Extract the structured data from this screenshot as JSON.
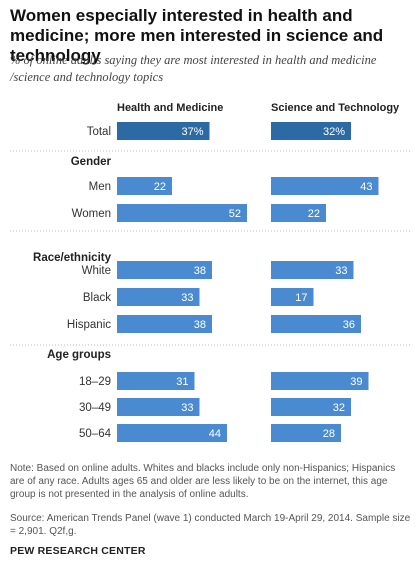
{
  "header": {
    "title": "Women especially interested in health and medicine; more men interested in science and technology",
    "subtitle": "% of online adults saying they are most interested in health and medicine /science and technology  topics"
  },
  "footer": {
    "note": "Note: Based on online adults. Whites and blacks include only non-Hispanics; Hispanics are of any race. Adults ages 65 and older are less likely to be on the internet, this age group is not presented in the analysis of online adults.",
    "source": "Source: American Trends Panel (wave 1) conducted March 19-April 29, 2014. Sample size = 2,901. Q2f,g.",
    "brand": "PEW RESEARCH CENTER"
  },
  "chart_data": {
    "type": "bar",
    "orientation": "horizontal",
    "value_format": "percent shown on Total row only",
    "series": [
      {
        "name": "Health and Medicine",
        "values": [
          37,
          22,
          52,
          38,
          33,
          38,
          31,
          33,
          44
        ]
      },
      {
        "name": "Science and Technology",
        "values": [
          32,
          43,
          22,
          33,
          17,
          36,
          39,
          32,
          28
        ]
      }
    ],
    "categories": [
      "Total",
      "Men",
      "Women",
      "White",
      "Black",
      "Hispanic",
      "18-29",
      "30-49",
      "50-64"
    ],
    "groups": [
      {
        "label": "",
        "categories": [
          "Total"
        ]
      },
      {
        "label": "Gender",
        "categories": [
          "Men",
          "Women"
        ]
      },
      {
        "label": "Race/ethnicity",
        "categories": [
          "White",
          "Black",
          "Hispanic"
        ]
      },
      {
        "label": "Age groups",
        "categories": [
          "18-29",
          "30-49",
          "50-64"
        ]
      }
    ],
    "value_labels": [
      "37%",
      "22",
      "52",
      "38",
      "33",
      "38",
      "31",
      "33",
      "44",
      "32%",
      "43",
      "22",
      "33",
      "17",
      "36",
      "39",
      "32",
      "28"
    ],
    "colors": {
      "total": "#2c6aa5",
      "bars": "#4a8ad0",
      "divider": "#bbbbbb",
      "label": "#ffffff"
    }
  }
}
